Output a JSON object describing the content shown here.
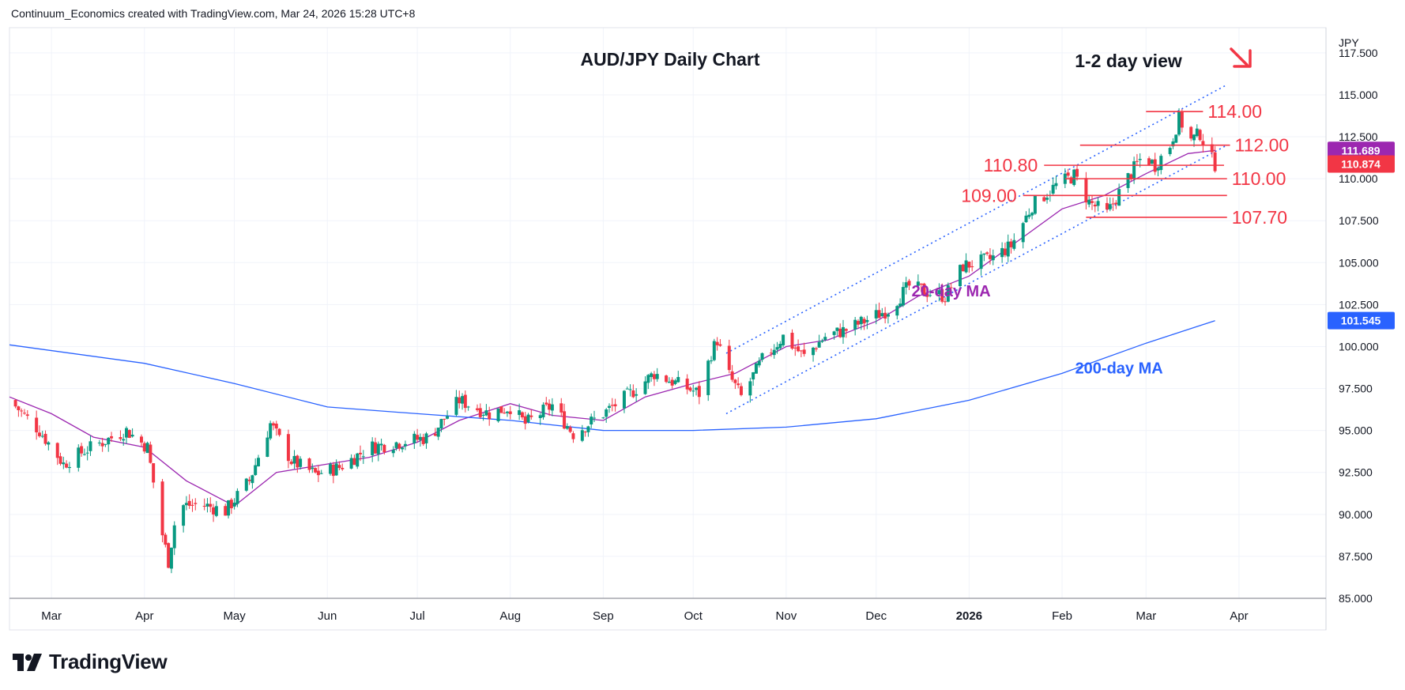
{
  "header": {
    "attribution": "Continuum_Economics created with TradingView.com, Mar 24, 2026 15:28 UTC+8"
  },
  "footer": {
    "brand": "TradingView",
    "logo_icon": "tradingview-logo-icon"
  },
  "colors": {
    "up": "#089981",
    "down": "#f23645",
    "level": "#f23645",
    "ma20": "#9c27b0",
    "ma200": "#2962ff",
    "channel": "#2962ff"
  },
  "chart_data": {
    "type": "candlestick",
    "title": "AUD/JPY Daily Chart",
    "subtitle": "1-2 day view",
    "currency_label": "JPY",
    "y_ticks": [
      "117.500",
      "115.000",
      "112.500",
      "110.000",
      "107.500",
      "105.000",
      "102.500",
      "100.000",
      "97.500",
      "95.000",
      "92.500",
      "90.000",
      "87.500",
      "85.000"
    ],
    "ylim": [
      85.0,
      119.0
    ],
    "x_ticks": [
      {
        "label": "Mar",
        "date": "2025-03-01"
      },
      {
        "label": "Apr",
        "date": "2025-04-01"
      },
      {
        "label": "May",
        "date": "2025-05-01"
      },
      {
        "label": "Jun",
        "date": "2025-06-01"
      },
      {
        "label": "Jul",
        "date": "2025-07-01"
      },
      {
        "label": "Aug",
        "date": "2025-08-01"
      },
      {
        "label": "Sep",
        "date": "2025-09-01"
      },
      {
        "label": "Oct",
        "date": "2025-10-01"
      },
      {
        "label": "Nov",
        "date": "2025-11-01"
      },
      {
        "label": "Dec",
        "date": "2025-12-01"
      },
      {
        "label": "2026",
        "date": "2026-01-01"
      },
      {
        "label": "Feb",
        "date": "2026-02-01"
      },
      {
        "label": "Mar",
        "date": "2026-03-01"
      },
      {
        "label": "Apr",
        "date": "2026-04-01"
      }
    ],
    "xlim": [
      "2025-02-15",
      "2026-04-30"
    ],
    "price_badges": [
      {
        "label": "111.689",
        "value": 111.689,
        "color": "#9c27b0"
      },
      {
        "label": "110.874",
        "value": 110.874,
        "color": "#f23645"
      },
      {
        "label": "101.545",
        "value": 101.545,
        "color": "#2962ff"
      }
    ],
    "levels": [
      {
        "label": "114.00",
        "value": 114.0,
        "from": "2026-03-01",
        "to": "2026-03-20",
        "label_side": "right"
      },
      {
        "label": "112.00",
        "value": 112.0,
        "from": "2026-02-07",
        "to": "2026-03-29",
        "label_side": "right"
      },
      {
        "label": "110.80",
        "value": 110.8,
        "from": "2026-01-26",
        "to": "2026-03-27",
        "label_side": "left"
      },
      {
        "label": "110.00",
        "value": 110.0,
        "from": "2026-02-02",
        "to": "2026-03-28",
        "label_side": "right"
      },
      {
        "label": "109.00",
        "value": 109.0,
        "from": "2026-01-19",
        "to": "2026-03-28",
        "label_side": "left"
      },
      {
        "label": "107.70",
        "value": 107.7,
        "from": "2026-02-09",
        "to": "2026-03-28",
        "label_side": "right"
      }
    ],
    "annotations": [
      {
        "text": "20-day MA",
        "color": "#9c27b0",
        "date": "2025-12-26",
        "value": 103.0
      },
      {
        "text": "200-day MA",
        "color": "#2962ff",
        "date": "2026-02-20",
        "value": 98.4
      }
    ],
    "arrow": {
      "direction": "down-right",
      "color": "#f23645"
    },
    "channel": {
      "upper": [
        [
          "2025-10-12",
          99.6
        ],
        [
          "2026-03-28",
          115.6
        ]
      ],
      "lower": [
        [
          "2025-10-12",
          96.0
        ],
        [
          "2026-03-28",
          112.0
        ]
      ]
    },
    "series": [
      {
        "name": "20-day MA",
        "points": [
          [
            "2025-02-15",
            97.0
          ],
          [
            "2025-03-01",
            96.0
          ],
          [
            "2025-03-15",
            94.6
          ],
          [
            "2025-04-01",
            94.0
          ],
          [
            "2025-04-15",
            92.0
          ],
          [
            "2025-05-01",
            90.5
          ],
          [
            "2025-05-15",
            92.5
          ],
          [
            "2025-06-01",
            93.0
          ],
          [
            "2025-06-15",
            93.4
          ],
          [
            "2025-07-01",
            94.3
          ],
          [
            "2025-07-15",
            95.6
          ],
          [
            "2025-08-01",
            96.6
          ],
          [
            "2025-08-15",
            95.9
          ],
          [
            "2025-09-01",
            95.6
          ],
          [
            "2025-09-15",
            97.0
          ],
          [
            "2025-10-01",
            97.8
          ],
          [
            "2025-10-15",
            98.4
          ],
          [
            "2025-11-01",
            100.0
          ],
          [
            "2025-11-15",
            100.4
          ],
          [
            "2025-12-01",
            101.5
          ],
          [
            "2025-12-15",
            103.0
          ],
          [
            "2026-01-01",
            104.2
          ],
          [
            "2026-01-15",
            106.0
          ],
          [
            "2026-02-01",
            108.2
          ],
          [
            "2026-02-15",
            109.0
          ],
          [
            "2026-03-01",
            110.3
          ],
          [
            "2026-03-15",
            111.5
          ],
          [
            "2026-03-24",
            111.689
          ]
        ]
      },
      {
        "name": "200-day MA",
        "points": [
          [
            "2025-02-15",
            100.1
          ],
          [
            "2025-04-01",
            99.0
          ],
          [
            "2025-05-01",
            97.8
          ],
          [
            "2025-06-01",
            96.4
          ],
          [
            "2025-07-01",
            96.0
          ],
          [
            "2025-08-01",
            95.6
          ],
          [
            "2025-09-01",
            95.0
          ],
          [
            "2025-10-01",
            95.0
          ],
          [
            "2025-11-01",
            95.2
          ],
          [
            "2025-12-01",
            95.7
          ],
          [
            "2026-01-01",
            96.8
          ],
          [
            "2026-02-01",
            98.4
          ],
          [
            "2026-03-01",
            100.2
          ],
          [
            "2026-03-24",
            101.545
          ]
        ]
      }
    ],
    "price_path": [
      [
        "2025-02-15",
        96.8
      ],
      [
        "2025-02-25",
        95.0
      ],
      [
        "2025-03-05",
        93.0
      ],
      [
        "2025-03-12",
        93.8
      ],
      [
        "2025-03-19",
        94.4
      ],
      [
        "2025-03-26",
        95.0
      ],
      [
        "2025-04-02",
        94.0
      ],
      [
        "2025-04-07",
        88.8
      ],
      [
        "2025-04-09",
        87.2
      ],
      [
        "2025-04-12",
        90.5
      ],
      [
        "2025-04-20",
        90.6
      ],
      [
        "2025-04-28",
        90.2
      ],
      [
        "2025-05-06",
        92.0
      ],
      [
        "2025-05-13",
        95.4
      ],
      [
        "2025-05-20",
        93.2
      ],
      [
        "2025-05-28",
        92.4
      ],
      [
        "2025-06-05",
        92.8
      ],
      [
        "2025-06-15",
        94.0
      ],
      [
        "2025-06-25",
        94.3
      ],
      [
        "2025-07-05",
        94.6
      ],
      [
        "2025-07-15",
        96.8
      ],
      [
        "2025-07-25",
        96.0
      ],
      [
        "2025-08-01",
        96.4
      ],
      [
        "2025-08-06",
        95.4
      ],
      [
        "2025-08-15",
        96.5
      ],
      [
        "2025-08-22",
        94.8
      ],
      [
        "2025-09-01",
        96.0
      ],
      [
        "2025-09-10",
        97.2
      ],
      [
        "2025-09-18",
        98.4
      ],
      [
        "2025-09-28",
        97.6
      ],
      [
        "2025-10-03",
        97.2
      ],
      [
        "2025-10-07",
        99.6
      ],
      [
        "2025-10-09",
        100.4
      ],
      [
        "2025-10-12",
        98.6
      ],
      [
        "2025-10-17",
        97.0
      ],
      [
        "2025-10-24",
        99.2
      ],
      [
        "2025-10-31",
        100.6
      ],
      [
        "2025-11-07",
        99.4
      ],
      [
        "2025-11-14",
        100.6
      ],
      [
        "2025-11-21",
        101.0
      ],
      [
        "2025-11-28",
        101.6
      ],
      [
        "2025-12-05",
        102.2
      ],
      [
        "2025-12-12",
        103.6
      ],
      [
        "2025-12-19",
        103.2
      ],
      [
        "2025-12-24",
        103.0
      ],
      [
        "2025-12-30",
        104.8
      ],
      [
        "2026-01-08",
        105.2
      ],
      [
        "2026-01-15",
        106.0
      ],
      [
        "2026-01-22",
        108.4
      ],
      [
        "2026-01-30",
        109.6
      ],
      [
        "2026-02-05",
        110.2
      ],
      [
        "2026-02-10",
        108.6
      ],
      [
        "2026-02-16",
        107.9
      ],
      [
        "2026-02-22",
        109.8
      ],
      [
        "2026-02-28",
        111.4
      ],
      [
        "2026-03-04",
        110.8
      ],
      [
        "2026-03-09",
        112.0
      ],
      [
        "2026-03-12",
        113.6
      ],
      [
        "2026-03-16",
        112.3
      ],
      [
        "2026-03-19",
        112.7
      ],
      [
        "2026-03-22",
        111.4
      ],
      [
        "2026-03-24",
        110.874
      ]
    ]
  }
}
